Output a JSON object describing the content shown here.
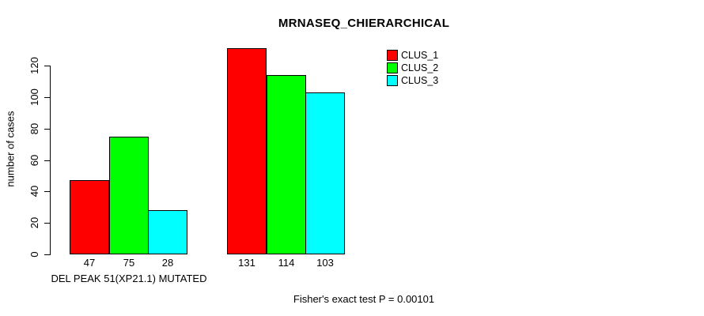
{
  "chart_data": {
    "type": "bar",
    "title": "MRNASEQ_CHIERARCHICAL",
    "ylabel": "number of cases",
    "xlabel": "",
    "categories": [
      "DEL PEAK 51(XP21.1) MUTATED",
      ""
    ],
    "series": [
      {
        "name": "CLUS_1",
        "color": "#ff0000",
        "values": [
          47,
          131
        ]
      },
      {
        "name": "CLUS_2",
        "color": "#00ff00",
        "values": [
          75,
          114
        ]
      },
      {
        "name": "CLUS_3",
        "color": "#00ffff",
        "values": [
          28,
          103
        ]
      }
    ],
    "bar_value_labels": [
      [
        47,
        75,
        28
      ],
      [
        131,
        114,
        103
      ]
    ],
    "yticks": [
      0,
      20,
      40,
      60,
      80,
      100,
      120
    ],
    "ylim": [
      0,
      131
    ],
    "grid": false,
    "legend_position": "top-right",
    "bar_border_color": "#000000",
    "annotation": "Fisher's exact test P = 0.00101"
  }
}
